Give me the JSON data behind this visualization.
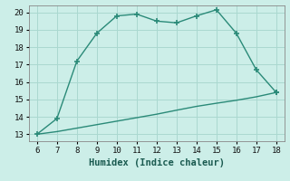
{
  "xlabel": "Humidex (Indice chaleur)",
  "x_main": [
    6,
    7,
    8,
    9,
    10,
    11,
    12,
    13,
    14,
    15,
    16,
    17,
    18
  ],
  "y_main": [
    13.0,
    13.9,
    17.2,
    18.8,
    19.8,
    19.9,
    19.5,
    19.4,
    19.8,
    20.15,
    18.8,
    16.7,
    15.4
  ],
  "x_smooth": [
    6,
    7,
    8,
    9,
    10,
    11,
    12,
    13,
    14,
    15,
    16,
    17,
    18
  ],
  "y_smooth": [
    13.0,
    13.15,
    13.35,
    13.55,
    13.75,
    13.95,
    14.15,
    14.38,
    14.6,
    14.78,
    14.95,
    15.15,
    15.4
  ],
  "line_color": "#2a8a78",
  "bg_color": "#cceee8",
  "grid_color": "#aad8d0",
  "xlim": [
    5.6,
    18.4
  ],
  "ylim": [
    12.6,
    20.4
  ],
  "xticks": [
    6,
    7,
    8,
    9,
    10,
    11,
    12,
    13,
    14,
    15,
    16,
    17,
    18
  ],
  "yticks": [
    13,
    14,
    15,
    16,
    17,
    18,
    19,
    20
  ],
  "marker": "+",
  "markersize": 4,
  "markeredgewidth": 1.2,
  "linewidth": 1.0,
  "xlabel_fontsize": 7.5,
  "tick_fontsize": 6.5
}
